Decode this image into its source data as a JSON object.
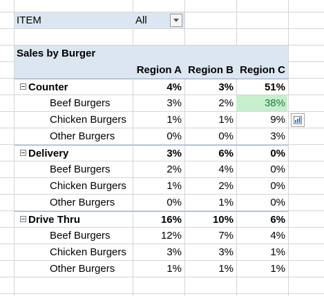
{
  "filter": {
    "label": "ITEM",
    "value": "All"
  },
  "pivot": {
    "title": "Sales by Burger",
    "columns": [
      "Region A",
      "Region B",
      "Region C"
    ],
    "rows": [
      {
        "type": "group",
        "label": "Counter",
        "values": [
          "4%",
          "3%",
          "51%"
        ]
      },
      {
        "type": "item",
        "label": "Beef Burgers",
        "values": [
          "3%",
          "2%",
          "38%"
        ]
      },
      {
        "type": "item",
        "label": "Chicken Burgers",
        "values": [
          "1%",
          "1%",
          "9%"
        ]
      },
      {
        "type": "item",
        "label": "Other Burgers",
        "values": [
          "0%",
          "0%",
          "3%"
        ]
      },
      {
        "type": "group",
        "label": "Delivery",
        "values": [
          "3%",
          "6%",
          "0%"
        ]
      },
      {
        "type": "item",
        "label": "Beef Burgers",
        "values": [
          "2%",
          "4%",
          "0%"
        ]
      },
      {
        "type": "item",
        "label": "Chicken Burgers",
        "values": [
          "1%",
          "2%",
          "0%"
        ]
      },
      {
        "type": "item",
        "label": "Other Burgers",
        "values": [
          "0%",
          "1%",
          "0%"
        ]
      },
      {
        "type": "group",
        "label": "Drive Thru",
        "values": [
          "16%",
          "10%",
          "6%"
        ]
      },
      {
        "type": "item",
        "label": "Beef Burgers",
        "values": [
          "12%",
          "7%",
          "4%"
        ]
      },
      {
        "type": "item",
        "label": "Chicken Burgers",
        "values": [
          "3%",
          "3%",
          "1%"
        ]
      },
      {
        "type": "item",
        "label": "Other Burgers",
        "values": [
          "1%",
          "1%",
          "1%"
        ]
      }
    ]
  },
  "icons": {
    "dropdown": "chevron-down-icon",
    "collapse": "minus-box-icon",
    "quick_analysis": "quick-analysis-icon"
  },
  "colors": {
    "header_fill": "#dce6f1",
    "highlight_fill": "#c6efce",
    "highlight_text": "#1f7a3a"
  }
}
